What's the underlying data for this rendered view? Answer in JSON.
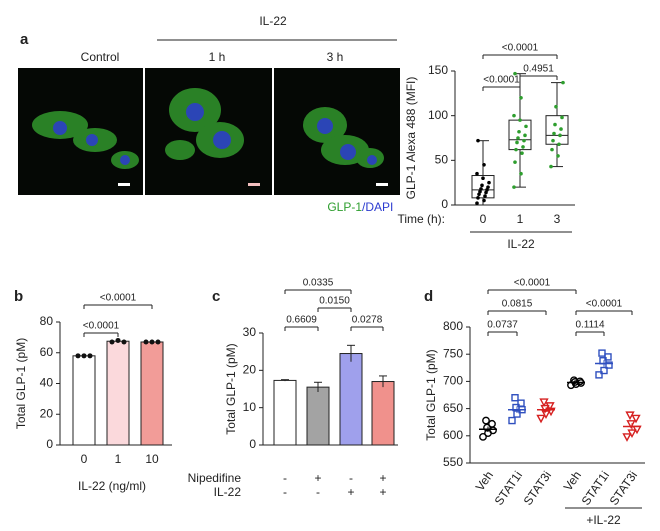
{
  "panels": {
    "labels": [
      "a",
      "b",
      "c",
      "d"
    ]
  },
  "images": {
    "control": "Control",
    "group": "IL-22",
    "times": [
      "1 h",
      "3 h"
    ],
    "stain": [
      "GLP-1",
      "/DAPI"
    ]
  },
  "chart_data": [
    {
      "type": "box",
      "y_label": "GLP-1 Alexa 488 (MFI)",
      "x_label": "Time (h):",
      "group_label": "IL-22",
      "categories": [
        "0",
        "1",
        "3"
      ],
      "ylim": [
        0,
        150
      ],
      "yticks": [
        0,
        50,
        100,
        150
      ],
      "boxes": [
        {
          "min": 0,
          "q1": 8,
          "median": 17,
          "q3": 33,
          "max": 72,
          "color": "#000000",
          "points": [
            2,
            5,
            8,
            10,
            12,
            14,
            15,
            17,
            18,
            20,
            22,
            25,
            30,
            35,
            45,
            72
          ]
        },
        {
          "min": 20,
          "q1": 62,
          "median": 73,
          "q3": 95,
          "max": 147,
          "color": "#2e9e2e",
          "points": [
            20,
            35,
            48,
            58,
            62,
            65,
            70,
            72,
            75,
            78,
            82,
            88,
            95,
            100,
            120,
            147
          ]
        },
        {
          "min": 43,
          "q1": 68,
          "median": 78,
          "q3": 100,
          "max": 137,
          "color": "#2e9e2e",
          "points": [
            43,
            55,
            62,
            68,
            72,
            78,
            80,
            85,
            90,
            98,
            110,
            137
          ]
        }
      ],
      "annotations": [
        "<0.0001",
        "0.4951",
        "<0.0001"
      ]
    },
    {
      "type": "bar",
      "y_label": "Total GLP-1 (pM)",
      "x_label": "IL-22 (ng/ml)",
      "categories": [
        "0",
        "1",
        "10"
      ],
      "values": [
        58,
        67.5,
        67
      ],
      "colors": [
        "#ffffff",
        "#fbd9dc",
        "#f29c98"
      ],
      "points": [
        [
          58,
          58,
          58
        ],
        [
          67,
          68,
          67
        ],
        [
          67,
          67,
          67
        ]
      ],
      "ylim": [
        0,
        80
      ],
      "yticks": [
        0,
        20,
        40,
        60,
        80
      ],
      "annotations": [
        "<0.0001",
        "<0.0001"
      ]
    },
    {
      "type": "bar",
      "y_label": "Total GLP-1 (pM)",
      "values": [
        17.3,
        15.5,
        24.5,
        17
      ],
      "errors": [
        0.2,
        1.3,
        2.2,
        1.5
      ],
      "colors": [
        "#ffffff",
        "#a3a3a3",
        "#9fa0ec",
        "#f0918c"
      ],
      "conditions": [
        {
          "label": "Nipedifine",
          "values": [
            "-",
            "+",
            "-",
            "+"
          ]
        },
        {
          "label": "IL-22",
          "values": [
            "-",
            "-",
            "+",
            "+"
          ]
        }
      ],
      "ylim": [
        0,
        30
      ],
      "yticks": [
        0,
        10,
        20,
        30
      ],
      "annotations": [
        "0.0335",
        "0.0150",
        "0.6609",
        "0.0278"
      ]
    },
    {
      "type": "dot",
      "y_label": "Total GLP-1 (pM)",
      "group_label": "+IL-22",
      "categories": [
        "Veh",
        "STAT1i",
        "STAT3i",
        "Veh",
        "STAT1i",
        "STAT3i"
      ],
      "groups": [
        {
          "mean": 612,
          "sem": 5,
          "color": "#000000",
          "marker": "circle",
          "points": [
            598,
            605,
            610,
            615,
            622,
            628
          ]
        },
        {
          "mean": 648,
          "sem": 6,
          "color": "#2f4fbf",
          "marker": "square",
          "points": [
            628,
            640,
            648,
            652,
            660,
            670
          ]
        },
        {
          "mean": 648,
          "sem": 4,
          "color": "#d62020",
          "marker": "triangle-down",
          "points": [
            632,
            640,
            645,
            650,
            655,
            662
          ]
        },
        {
          "mean": 698,
          "sem": 1.5,
          "color": "#000000",
          "marker": "circle",
          "points": [
            693,
            695,
            697,
            699,
            700,
            702
          ]
        },
        {
          "mean": 733,
          "sem": 6,
          "color": "#2f4fbf",
          "marker": "square",
          "points": [
            712,
            720,
            730,
            738,
            745,
            752
          ]
        },
        {
          "mean": 617,
          "sem": 6,
          "color": "#d62020",
          "marker": "triangle-down",
          "points": [
            598,
            605,
            612,
            622,
            632,
            638
          ]
        }
      ],
      "ylim": [
        550,
        800
      ],
      "yticks": [
        550,
        600,
        650,
        700,
        750,
        800
      ],
      "annotations": [
        "<0.0001",
        "0.0815",
        "0.0737",
        "0.1114",
        "<0.0001"
      ]
    }
  ]
}
